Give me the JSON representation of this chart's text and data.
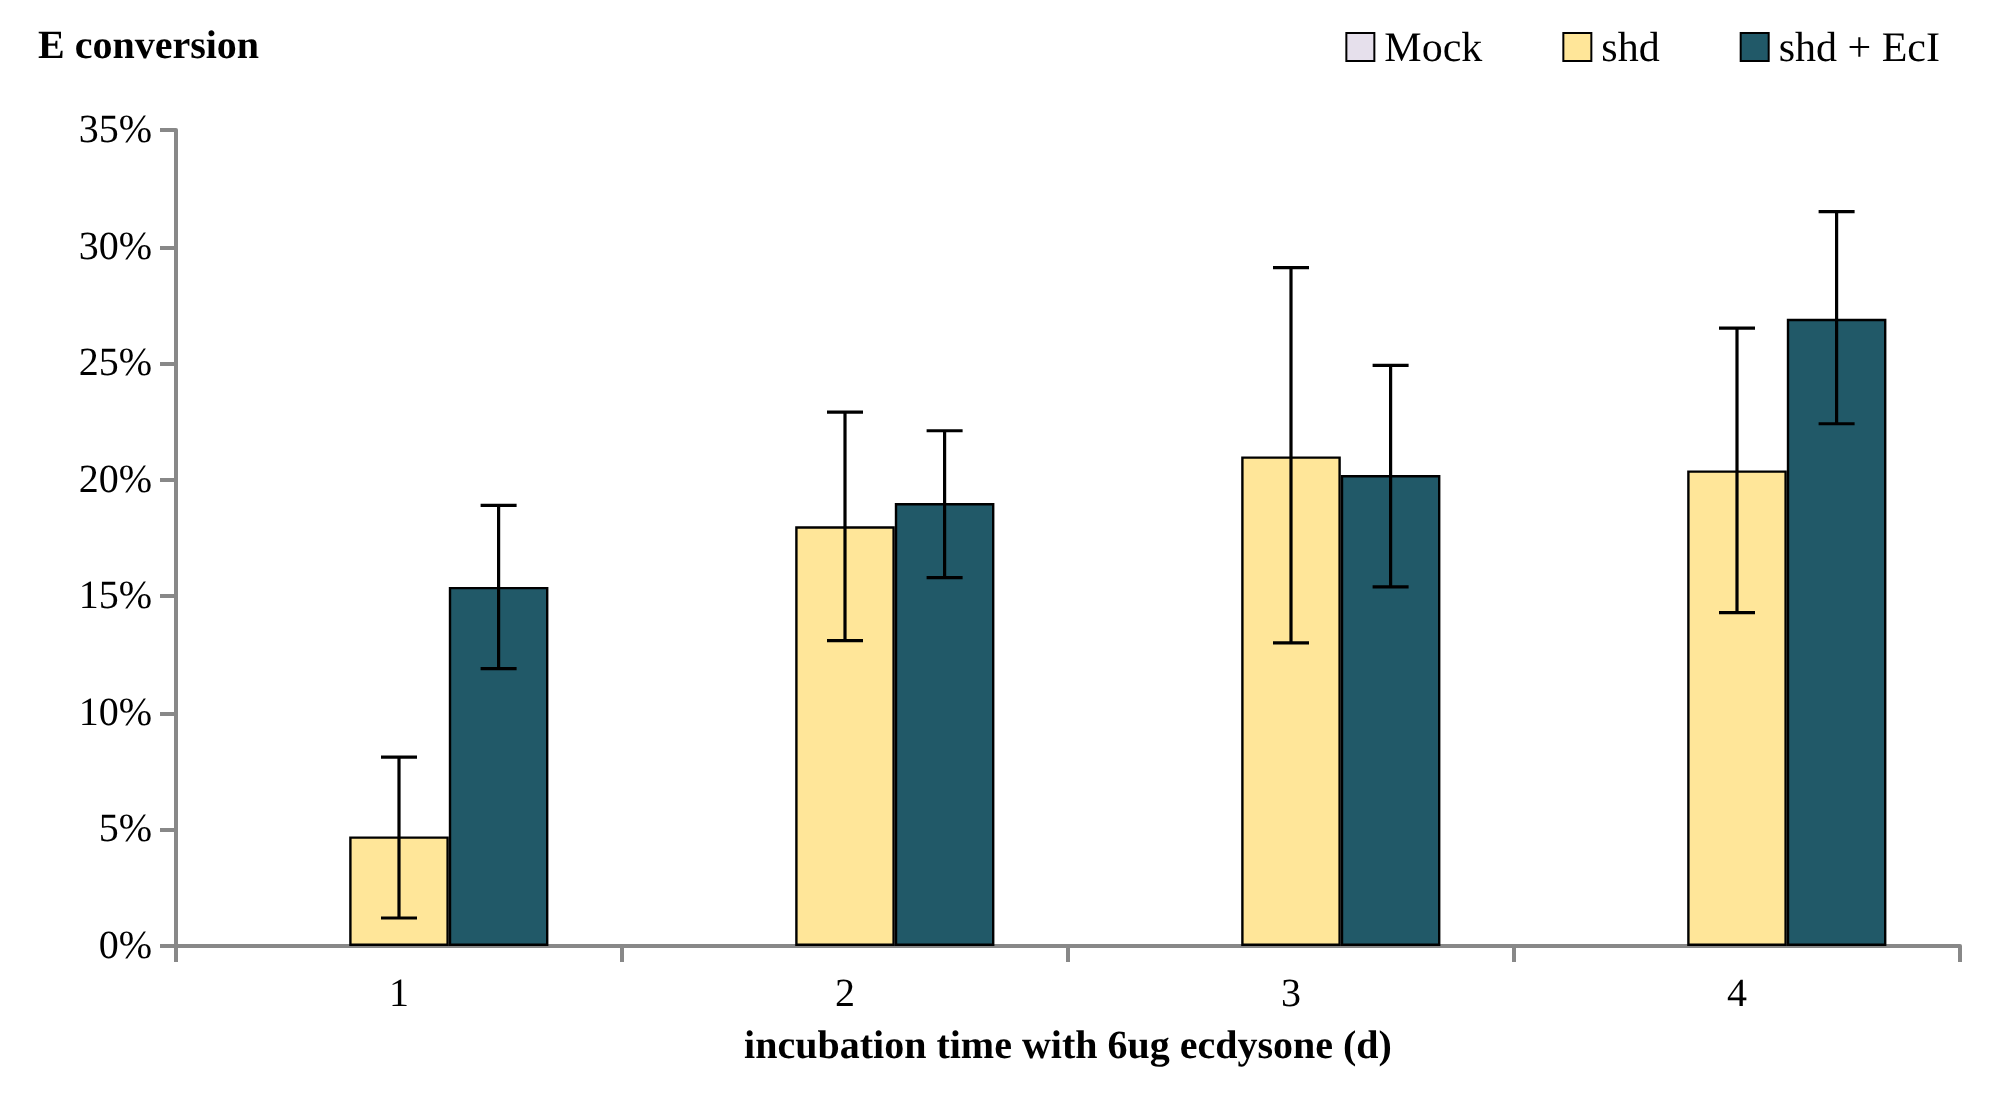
{
  "chart_data": {
    "type": "bar",
    "title": "E conversion",
    "xlabel": "incubation time with 6ug ecdysone (d)",
    "categories": [
      "1",
      "2",
      "3",
      "4"
    ],
    "series": [
      {
        "name": "Mock",
        "color": "#e6e0ec",
        "values": [
          null,
          null,
          null,
          null
        ]
      },
      {
        "name": "shd",
        "color": "#ffe699",
        "values": [
          4.7,
          18.0,
          21.0,
          20.4
        ],
        "errors": [
          [
            1.2,
            8.1
          ],
          [
            13.1,
            22.9
          ],
          [
            13.0,
            29.1
          ],
          [
            14.3,
            26.5
          ]
        ]
      },
      {
        "name": "shd + EcI",
        "color": "#215968",
        "values": [
          15.4,
          19.0,
          20.2,
          26.9
        ],
        "errors": [
          [
            11.9,
            18.9
          ],
          [
            15.8,
            22.1
          ],
          [
            15.4,
            24.9
          ],
          [
            22.4,
            31.5
          ]
        ]
      }
    ],
    "ylim": [
      0,
      35
    ],
    "yticks": [
      {
        "value": 0,
        "label": "0%"
      },
      {
        "value": 5,
        "label": "5%"
      },
      {
        "value": 10,
        "label": "10%"
      },
      {
        "value": 15,
        "label": "15%"
      },
      {
        "value": 20,
        "label": "20%"
      },
      {
        "value": 25,
        "label": "25%"
      },
      {
        "value": 30,
        "label": "30%"
      },
      {
        "value": 35,
        "label": "35%"
      }
    ],
    "grid": false,
    "legend": "top right"
  }
}
